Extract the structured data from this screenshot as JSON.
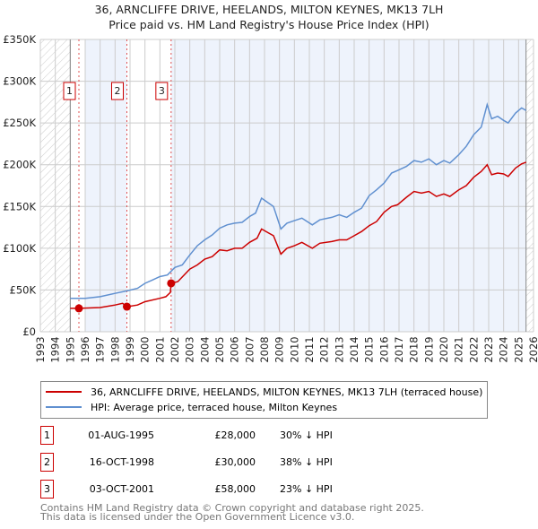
{
  "title_line1": "36, ARNCLIFFE DRIVE, HEELANDS, MILTON KEYNES, MK13 7LH",
  "title_line2": "Price paid vs. HM Land Registry's House Price Index (HPI)",
  "colors": {
    "property": "#cc0000",
    "hpi": "#6090d0",
    "shade": "#eef3fc"
  },
  "chart_data": {
    "type": "line",
    "xlim": [
      1993,
      2026
    ],
    "ylim": [
      0,
      350000
    ],
    "x_ticks": [
      "1993",
      "1994",
      "1995",
      "1996",
      "1997",
      "1998",
      "1999",
      "2000",
      "2001",
      "2002",
      "2003",
      "2004",
      "2005",
      "2006",
      "2007",
      "2008",
      "2009",
      "2010",
      "2011",
      "2012",
      "2013",
      "2014",
      "2015",
      "2016",
      "2017",
      "2018",
      "2019",
      "2020",
      "2021",
      "2022",
      "2023",
      "2024",
      "2025",
      "2026"
    ],
    "y_ticks": [
      {
        "v": 0,
        "label": "£0"
      },
      {
        "v": 50000,
        "label": "£50K"
      },
      {
        "v": 100000,
        "label": "£100K"
      },
      {
        "v": 150000,
        "label": "£150K"
      },
      {
        "v": 200000,
        "label": "£200K"
      },
      {
        "v": 250000,
        "label": "£250K"
      },
      {
        "v": 300000,
        "label": "£300K"
      },
      {
        "v": 350000,
        "label": "£350K"
      }
    ],
    "grid": true,
    "series": [
      {
        "name": "36, ARNCLIFFE DRIVE, HEELANDS, MILTON KEYNES, MK13 7LH (terraced house)",
        "color": "#cc0000",
        "points": [
          [
            1995,
            28000
          ],
          [
            1995.58,
            28000
          ],
          [
            1997,
            29000
          ],
          [
            1998,
            32000
          ],
          [
            1998.5,
            34000
          ],
          [
            1998.79,
            30000
          ],
          [
            1999.5,
            32000
          ],
          [
            2000,
            36000
          ],
          [
            2001,
            40000
          ],
          [
            2001.4,
            42000
          ],
          [
            2001.7,
            47000
          ],
          [
            2001.75,
            58000
          ],
          [
            2002.2,
            60000
          ],
          [
            2003,
            75000
          ],
          [
            2003.5,
            80000
          ],
          [
            2004,
            87000
          ],
          [
            2004.5,
            90000
          ],
          [
            2005,
            98000
          ],
          [
            2005.5,
            97000
          ],
          [
            2006,
            100000
          ],
          [
            2006.5,
            100000
          ],
          [
            2007,
            107000
          ],
          [
            2007.5,
            112000
          ],
          [
            2007.8,
            123000
          ],
          [
            2008.3,
            118000
          ],
          [
            2008.6,
            115000
          ],
          [
            2009.1,
            93000
          ],
          [
            2009.5,
            100000
          ],
          [
            2010,
            103000
          ],
          [
            2010.5,
            107000
          ],
          [
            2011.2,
            100000
          ],
          [
            2011.7,
            106000
          ],
          [
            2012.5,
            108000
          ],
          [
            2013,
            110000
          ],
          [
            2013.5,
            110000
          ],
          [
            2014,
            115000
          ],
          [
            2014.5,
            120000
          ],
          [
            2015,
            127000
          ],
          [
            2015.5,
            132000
          ],
          [
            2016,
            143000
          ],
          [
            2016.5,
            150000
          ],
          [
            2016.9,
            152000
          ],
          [
            2017.5,
            161000
          ],
          [
            2018,
            168000
          ],
          [
            2018.5,
            166000
          ],
          [
            2019,
            168000
          ],
          [
            2019.5,
            162000
          ],
          [
            2020,
            165000
          ],
          [
            2020.4,
            162000
          ],
          [
            2021,
            170000
          ],
          [
            2021.5,
            175000
          ],
          [
            2022,
            185000
          ],
          [
            2022.5,
            192000
          ],
          [
            2022.9,
            200000
          ],
          [
            2023.2,
            188000
          ],
          [
            2023.6,
            190000
          ],
          [
            2024,
            189000
          ],
          [
            2024.3,
            186000
          ],
          [
            2024.8,
            196000
          ],
          [
            2025.2,
            201000
          ],
          [
            2025.5,
            203000
          ]
        ]
      },
      {
        "name": "HPI: Average price, terraced house, Milton Keynes",
        "color": "#6090d0",
        "points": [
          [
            1995,
            40000
          ],
          [
            1996,
            40000
          ],
          [
            1997,
            42000
          ],
          [
            1998,
            46000
          ],
          [
            1998.8,
            49000
          ],
          [
            1999.5,
            52000
          ],
          [
            2000,
            58000
          ],
          [
            2000.5,
            62000
          ],
          [
            2001,
            66000
          ],
          [
            2001.5,
            68000
          ],
          [
            2002,
            77000
          ],
          [
            2002.5,
            80000
          ],
          [
            2003,
            92000
          ],
          [
            2003.5,
            103000
          ],
          [
            2004,
            110000
          ],
          [
            2004.5,
            116000
          ],
          [
            2005,
            124000
          ],
          [
            2005.5,
            128000
          ],
          [
            2006,
            130000
          ],
          [
            2006.5,
            131000
          ],
          [
            2007,
            138000
          ],
          [
            2007.4,
            142000
          ],
          [
            2007.8,
            160000
          ],
          [
            2008.2,
            155000
          ],
          [
            2008.6,
            150000
          ],
          [
            2009.1,
            123000
          ],
          [
            2009.5,
            130000
          ],
          [
            2010,
            133000
          ],
          [
            2010.5,
            136000
          ],
          [
            2011.2,
            128000
          ],
          [
            2011.7,
            134000
          ],
          [
            2012.5,
            137000
          ],
          [
            2013,
            140000
          ],
          [
            2013.5,
            137000
          ],
          [
            2014,
            143000
          ],
          [
            2014.5,
            148000
          ],
          [
            2015,
            163000
          ],
          [
            2015.5,
            170000
          ],
          [
            2016,
            178000
          ],
          [
            2016.5,
            190000
          ],
          [
            2016.9,
            193000
          ],
          [
            2017.5,
            198000
          ],
          [
            2018,
            205000
          ],
          [
            2018.5,
            203000
          ],
          [
            2019,
            207000
          ],
          [
            2019.5,
            200000
          ],
          [
            2020,
            205000
          ],
          [
            2020.4,
            202000
          ],
          [
            2021,
            212000
          ],
          [
            2021.5,
            222000
          ],
          [
            2022,
            236000
          ],
          [
            2022.5,
            245000
          ],
          [
            2022.9,
            272000
          ],
          [
            2023.2,
            255000
          ],
          [
            2023.6,
            258000
          ],
          [
            2024,
            253000
          ],
          [
            2024.3,
            250000
          ],
          [
            2024.8,
            262000
          ],
          [
            2025.2,
            268000
          ],
          [
            2025.5,
            265000
          ]
        ]
      }
    ],
    "data_end": 2025.5,
    "sales": [
      {
        "id": "1",
        "x": 1995.58,
        "price": 28000
      },
      {
        "id": "2",
        "x": 1998.79,
        "price": 30000
      },
      {
        "id": "3",
        "x": 2001.75,
        "price": 58000
      }
    ]
  },
  "legend": {
    "property": "36, ARNCLIFFE DRIVE, HEELANDS, MILTON KEYNES, MK13 7LH (terraced house)",
    "hpi": "HPI: Average price, terraced house, Milton Keynes"
  },
  "table": [
    {
      "num": "1",
      "date": "01-AUG-1995",
      "price": "£28,000",
      "hpi": "30% ↓ HPI"
    },
    {
      "num": "2",
      "date": "16-OCT-1998",
      "price": "£30,000",
      "hpi": "38% ↓ HPI"
    },
    {
      "num": "3",
      "date": "03-OCT-2001",
      "price": "£58,000",
      "hpi": "23% ↓ HPI"
    }
  ],
  "footer": {
    "line1": "Contains HM Land Registry data © Crown copyright and database right 2025.",
    "line2": "This data is licensed under the Open Government Licence v3.0."
  }
}
